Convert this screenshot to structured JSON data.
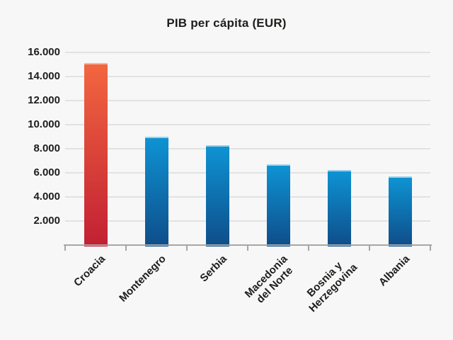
{
  "chart_data": {
    "type": "bar",
    "title": "PIB per cápita (EUR)",
    "categories": [
      "Croacia",
      "Montenegro",
      "Serbia",
      "Macedonia\ndel Norte",
      "Bosnia y\nHerzegovina",
      "Albania"
    ],
    "values": [
      15100,
      9000,
      8300,
      6700,
      6200,
      5700
    ],
    "highlight_index": 0,
    "xlabel": "",
    "ylabel": "",
    "ylim": [
      0,
      16800
    ],
    "yticks": [
      2000,
      4000,
      6000,
      8000,
      10000,
      12000,
      14000,
      16000
    ],
    "ytick_labels": [
      "2.000",
      "4.000",
      "6.000",
      "8.000",
      "10.000",
      "12.000",
      "14.000",
      "16.000"
    ],
    "grid": true,
    "legend": false,
    "xtick_label_rotation_deg": 45
  },
  "style": {
    "background": "#f7f7f7",
    "text_color": "#1d1d1b",
    "gridline_color": "#e2e2e2",
    "axis_color": "#a6a6a6",
    "highlight_bar": {
      "top": "#f2663f",
      "bottom": "#c22033",
      "cap": "#f4b2a0"
    },
    "default_bar": {
      "top": "#0e93d3",
      "bottom": "#0e4d89",
      "cap": "#9ed0ea"
    }
  }
}
